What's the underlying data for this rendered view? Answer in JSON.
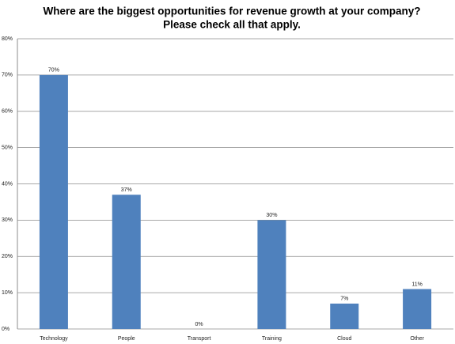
{
  "chart_data": {
    "type": "bar",
    "title": "Where are the biggest opportunities for revenue growth at your company?",
    "subtitle": "Please check all that apply.",
    "categories": [
      "Technology",
      "People",
      "Transport",
      "Training",
      "Cloud",
      "Other"
    ],
    "values": [
      70,
      37,
      0,
      30,
      7,
      11
    ],
    "value_labels": [
      "70%",
      "37%",
      "0%",
      "30%",
      "7%",
      "11%"
    ],
    "color": "#4f81bd",
    "ylim": [
      0,
      80
    ],
    "yticks": [
      {
        "value": 0,
        "label": "0%"
      },
      {
        "value": 10,
        "label": "10%"
      },
      {
        "value": 20,
        "label": "20%"
      },
      {
        "value": 30,
        "label": "30%"
      },
      {
        "value": 40,
        "label": "40%"
      },
      {
        "value": 50,
        "label": "50%"
      },
      {
        "value": 60,
        "label": "60%"
      },
      {
        "value": 70,
        "label": "70%"
      },
      {
        "value": 80,
        "label": "80%"
      }
    ],
    "grid": true
  }
}
